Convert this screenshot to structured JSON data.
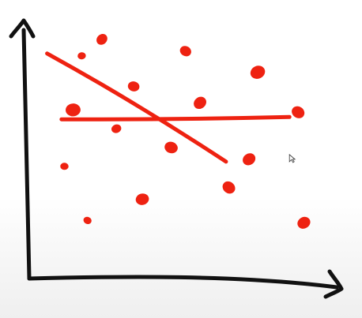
{
  "chart_data": {
    "type": "scatter",
    "style": "hand-drawn sketch",
    "title": "",
    "xlabel": "",
    "ylabel": "",
    "xlim": [
      0,
      100
    ],
    "ylim": [
      0,
      100
    ],
    "grid": false,
    "legend": "none",
    "colors": {
      "axis": "#111111",
      "marks": "#ee2211"
    },
    "points": [
      {
        "x": 23,
        "y": 94
      },
      {
        "x": 16,
        "y": 87
      },
      {
        "x": 52,
        "y": 89
      },
      {
        "x": 77,
        "y": 80
      },
      {
        "x": 34,
        "y": 74
      },
      {
        "x": 57,
        "y": 67
      },
      {
        "x": 13,
        "y": 64
      },
      {
        "x": 91,
        "y": 63
      },
      {
        "x": 28,
        "y": 56
      },
      {
        "x": 47,
        "y": 48
      },
      {
        "x": 74,
        "y": 43
      },
      {
        "x": 10,
        "y": 40
      },
      {
        "x": 67,
        "y": 31
      },
      {
        "x": 37,
        "y": 26
      },
      {
        "x": 18,
        "y": 17
      },
      {
        "x": 93,
        "y": 16
      }
    ],
    "lines": [
      {
        "x": [
          4,
          66
        ],
        "y": [
          88,
          42
        ]
      },
      {
        "x": [
          9,
          88
        ],
        "y": [
          60,
          61
        ]
      }
    ],
    "cursor": {
      "x": 88,
      "y": 45
    }
  }
}
